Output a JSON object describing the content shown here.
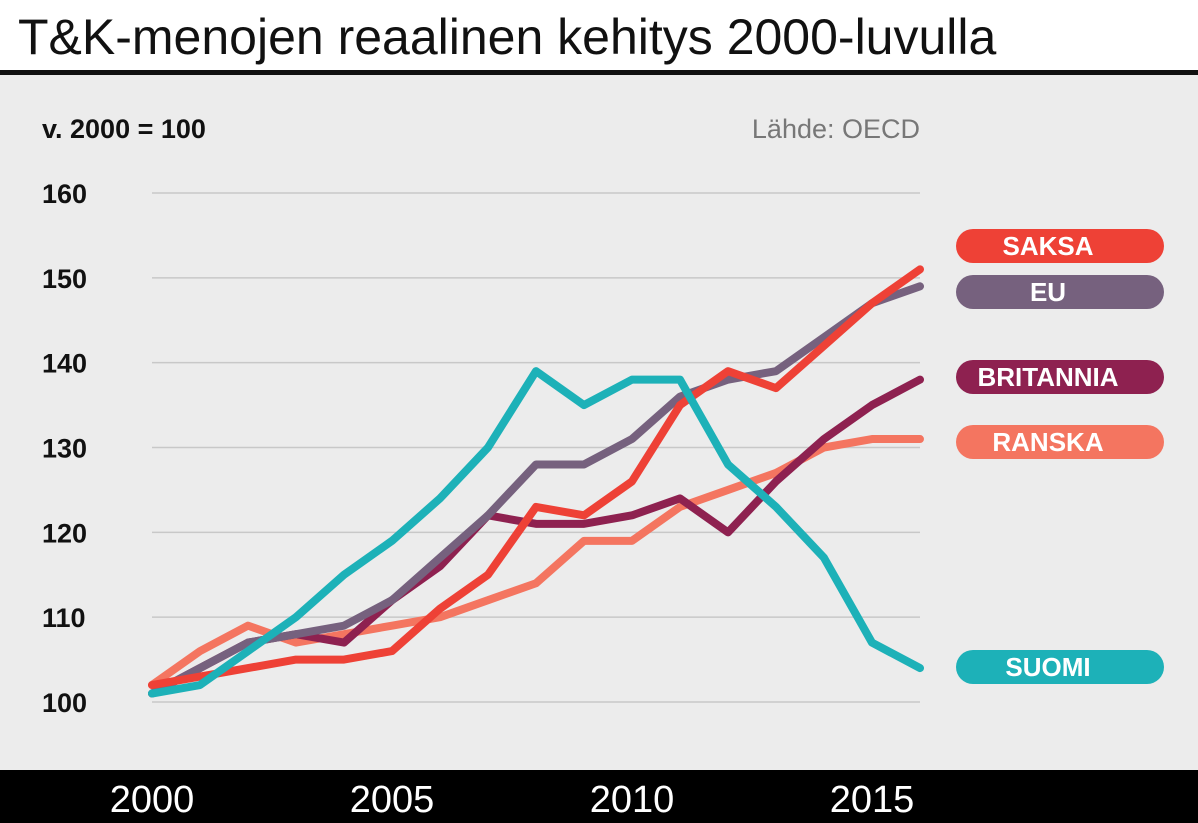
{
  "title": "T&K-menojen reaalinen kehitys 2000-luvulla",
  "subtitle": "v. 2000 = 100",
  "source": "Lähde: OECD",
  "chart_data": {
    "type": "line",
    "title": "T&K-menojen reaalinen kehitys 2000-luvulla",
    "ylabel": "v. 2000 = 100",
    "ylim": [
      100,
      160
    ],
    "xlim": [
      2000,
      2016
    ],
    "grid": true,
    "legend_placement": "right, end of lines",
    "y_ticks": [
      100,
      110,
      120,
      130,
      140,
      150,
      160
    ],
    "x_ticks": [
      2000,
      2005,
      2010,
      2015
    ],
    "x": [
      2000,
      2001,
      2002,
      2003,
      2004,
      2005,
      2006,
      2007,
      2008,
      2009,
      2010,
      2011,
      2012,
      2013,
      2014,
      2015,
      2016
    ],
    "series": [
      {
        "name": "SAKSA",
        "color": "#ee4136",
        "values": [
          102,
          103,
          104,
          105,
          105,
          106,
          111,
          115,
          123,
          122,
          126,
          135,
          139,
          137,
          142,
          147,
          151
        ]
      },
      {
        "name": "EU",
        "color": "#76617e",
        "values": [
          101,
          104,
          107,
          108,
          109,
          112,
          117,
          122,
          128,
          128,
          131,
          136,
          138,
          139,
          143,
          147,
          149
        ]
      },
      {
        "name": "BRITANNIA",
        "color": "#8e2150",
        "values": [
          101,
          104,
          107,
          108,
          107,
          112,
          116,
          122,
          121,
          121,
          122,
          124,
          120,
          126,
          131,
          135,
          138
        ]
      },
      {
        "name": "RANSKA",
        "color": "#f47560",
        "values": [
          102,
          106,
          109,
          107,
          108,
          109,
          110,
          112,
          114,
          119,
          119,
          123,
          125,
          127,
          130,
          131,
          131
        ]
      },
      {
        "name": "SUOMI",
        "color": "#1db1b8",
        "values": [
          101,
          102,
          106,
          110,
          115,
          119,
          124,
          130,
          139,
          135,
          138,
          138,
          128,
          123,
          117,
          107,
          104
        ]
      }
    ]
  }
}
